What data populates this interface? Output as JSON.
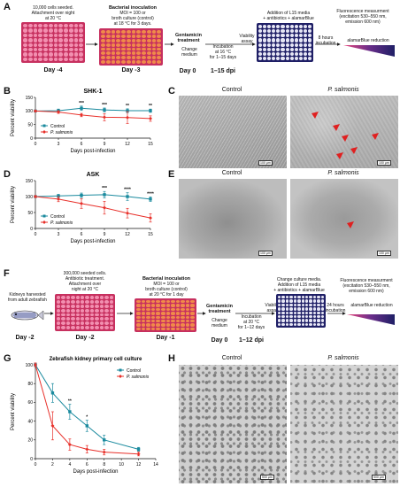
{
  "panels": {
    "A": "A",
    "B": "B",
    "C": "C",
    "D": "D",
    "E": "E",
    "F": "F",
    "G": "G",
    "H": "H"
  },
  "panelA": {
    "seed_text": "10,000 cells seeded.\nAttachment over night\nat 20 °C",
    "inoc_title": "Bacterial inoculation",
    "inoc_text": "MOI = 100 or\nbroth culture (control)\nat 18 °C for 3 days.",
    "gent_title": "Gentamicin\ntreatment",
    "change_medium": "Change\nmedium",
    "incubation": "Incubation\nat 16 °C\nfor 1–15 days",
    "viability": "Viability\nassay",
    "l15": "Addition of L15 media\n+ antibiotics + alamarBlue",
    "hours": "8 hours\nincubation",
    "fluor": "Fluorescence measurment\n(excitation 530–550 nm,\nemission 600 nm)",
    "reduction": "alamarBlue reduction",
    "day_m4": "Day -4",
    "day_m3": "Day -3",
    "day_0": "Day 0",
    "dpi": "1–15 dpi"
  },
  "panelF": {
    "kidneys": "Kidneys harvested\nfrom adult zebrafish",
    "seed_text": "300,000 seeded cells.\nAntibiotic treatment.\nAttachment over\nnight at 20 °C",
    "inoc_title": "Bacterial inoculation",
    "inoc_text": "MOI = 100 or\nbroth culture (control)\nat 20 °C for 1 day",
    "gent_title": "Gentamicin\ntreatment",
    "change_medium": "Change\nmedium",
    "incubation": "Incubation\nat 20 °C\nfor 1–12 days",
    "viability": "Viability\nassay",
    "change": "Change culture media.\nAddition of L15 media\n+ antibiotics + alamarBlue",
    "hours": "24 hours\nincubation",
    "fluor": "Fluorescence measurment\n(excitation 530–550 nm,\nemission 600 nm)",
    "reduction": "alamarBlue reduction",
    "day_m2a": "Day -2",
    "day_m2b": "Day -2",
    "day_m1": "Day -1",
    "day_0": "Day 0",
    "dpi": "1–12 dpi"
  },
  "micrographs": {
    "control": "Control",
    "psalmonis": "P. salmonis",
    "scale100": "100 µm",
    "scale500": "500 µm"
  },
  "colors": {
    "pink": "#e8467c",
    "orange": "#e8642a",
    "navy": "#1f1f66",
    "control": "#1a8a9e",
    "psalmonis": "#e8302a"
  },
  "chart_data": [
    {
      "type": "line",
      "title": "SHK-1",
      "xlabel": "Days post-infection",
      "ylabel": "Percent viability",
      "x": [
        0,
        3,
        6,
        9,
        12,
        15
      ],
      "xlim": [
        0,
        15
      ],
      "ylim": [
        0,
        150
      ],
      "yticks": [
        0,
        50,
        100,
        150
      ],
      "xticks": [
        0,
        3,
        6,
        9,
        12,
        15
      ],
      "legend": "bottom-left",
      "series": [
        {
          "name": "Control",
          "values": [
            100,
            101,
            110,
            104,
            101,
            101
          ],
          "err": [
            3,
            6,
            8,
            7,
            7,
            6
          ],
          "color": "#1a8a9e"
        },
        {
          "name": "P. salmonis",
          "values": [
            100,
            96,
            85,
            77,
            76,
            72
          ],
          "err": [
            3,
            5,
            6,
            13,
            22,
            10
          ],
          "color": "#e8302a"
        }
      ],
      "annotations": [
        {
          "x": 6,
          "text": "***"
        },
        {
          "x": 9,
          "text": "***"
        },
        {
          "x": 12,
          "text": "**"
        },
        {
          "x": 15,
          "text": "**"
        }
      ]
    },
    {
      "type": "line",
      "title": "ASK",
      "xlabel": "Days post-infection",
      "ylabel": "Percent viability",
      "x": [
        0,
        3,
        6,
        9,
        12,
        15
      ],
      "xlim": [
        0,
        15
      ],
      "ylim": [
        0,
        150
      ],
      "yticks": [
        0,
        50,
        100,
        150
      ],
      "xticks": [
        0,
        3,
        6,
        9,
        12,
        15
      ],
      "legend": "bottom-left",
      "series": [
        {
          "name": "Control",
          "values": [
            100,
            102,
            104,
            106,
            100,
            92
          ],
          "err": [
            3,
            5,
            7,
            10,
            12,
            7
          ],
          "color": "#1a8a9e"
        },
        {
          "name": "P. salmonis",
          "values": [
            100,
            92,
            78,
            65,
            48,
            33
          ],
          "err": [
            3,
            8,
            15,
            20,
            15,
            13
          ],
          "color": "#e8302a"
        }
      ],
      "annotations": [
        {
          "x": 9,
          "text": "***"
        },
        {
          "x": 12,
          "text": "****"
        },
        {
          "x": 15,
          "text": "****"
        }
      ]
    },
    {
      "type": "line",
      "title": "Zebrafish kidney primary cell culture",
      "xlabel": "Days post-infection",
      "ylabel": "Percent viability",
      "x": [
        0,
        2,
        4,
        6,
        8,
        12
      ],
      "xlim": [
        0,
        14
      ],
      "ylim": [
        0,
        100
      ],
      "yticks": [
        0,
        20,
        40,
        60,
        80,
        100
      ],
      "xticks": [
        0,
        2,
        4,
        6,
        8,
        10,
        12,
        14
      ],
      "legend": "top-right",
      "series": [
        {
          "name": "Control",
          "values": [
            100,
            70,
            50,
            35,
            20,
            10
          ],
          "err": [
            2,
            10,
            8,
            6,
            5,
            2
          ],
          "color": "#1a8a9e"
        },
        {
          "name": "P. salmonis",
          "values": [
            100,
            35,
            15,
            10,
            7,
            5
          ],
          "err": [
            2,
            15,
            6,
            4,
            3,
            2
          ],
          "color": "#e8302a"
        }
      ],
      "annotations": [
        {
          "x": 4,
          "text": "**"
        },
        {
          "x": 6,
          "text": "*"
        }
      ]
    }
  ]
}
